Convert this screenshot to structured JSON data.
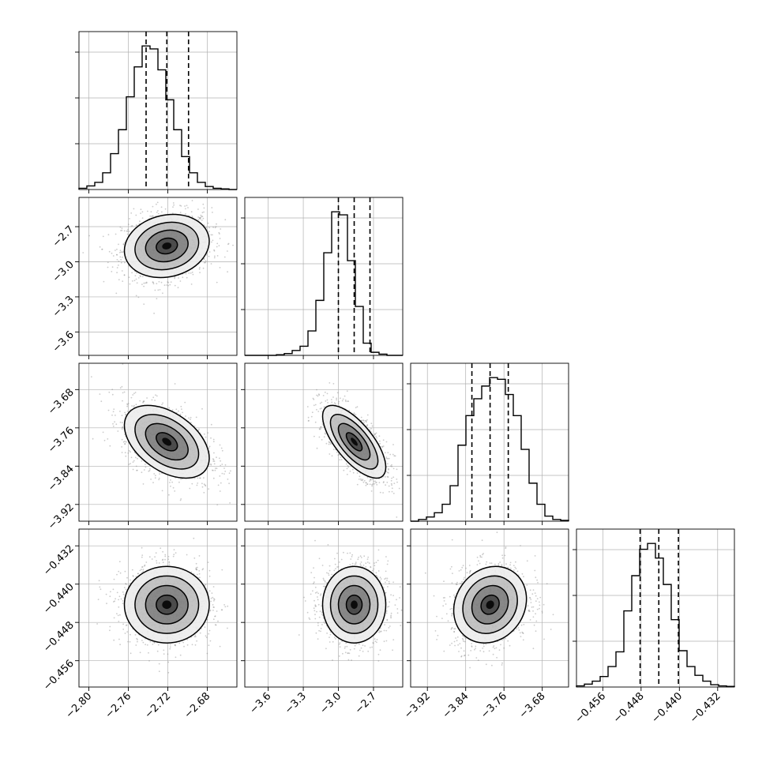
{
  "chart_data": {
    "type": "corner",
    "title": "",
    "parameters": [
      {
        "label": "",
        "range": [
          -2.81,
          -2.65
        ],
        "quantiles": [
          -2.742,
          -2.721,
          -2.699
        ],
        "ticks": [
          "-2.80",
          "-2.76",
          "-2.72",
          "-2.68"
        ],
        "tick_values": [
          -2.8,
          -2.76,
          -2.72,
          -2.68
        ]
      },
      {
        "label": "",
        "range": [
          -3.8,
          -2.45
        ],
        "quantiles": [
          -3.0,
          -2.865,
          -2.73
        ],
        "ticks": [
          "-3.6",
          "-3.3",
          "-3.0",
          "-2.7"
        ],
        "tick_values": [
          -3.6,
          -3.3,
          -3.0,
          -2.7
        ]
      },
      {
        "label": "",
        "range": [
          -3.955,
          -3.625
        ],
        "quantiles": [
          -3.827,
          -3.789,
          -3.751
        ],
        "ticks": [
          "-3.92",
          "-3.84",
          "-3.76",
          "-3.68"
        ],
        "tick_values": [
          -3.92,
          -3.84,
          -3.76,
          -3.68
        ]
      },
      {
        "label": "",
        "range": [
          -0.4615,
          -0.4285
        ],
        "quantiles": [
          -0.4482,
          -0.4443,
          -0.4402
        ],
        "ticks": [
          "-0.456",
          "-0.448",
          "-0.440",
          "-0.432"
        ],
        "tick_values": [
          -0.456,
          -0.448,
          -0.44,
          -0.432
        ]
      }
    ],
    "histograms": [
      {
        "bins": 20,
        "counts": [
          2,
          6,
          12,
          28,
          60,
          100,
          155,
          205,
          240,
          235,
          200,
          150,
          100,
          55,
          28,
          12,
          5,
          2,
          1,
          0
        ]
      },
      {
        "bins": 20,
        "counts": [
          0,
          0,
          0,
          0,
          1,
          3,
          8,
          15,
          40,
          90,
          168,
          235,
          230,
          155,
          80,
          20,
          5,
          2,
          0,
          0
        ]
      },
      {
        "bins": 20,
        "counts": [
          0,
          2,
          5,
          10,
          20,
          42,
          90,
          125,
          145,
          160,
          170,
          168,
          150,
          125,
          85,
          45,
          20,
          6,
          2,
          1
        ]
      },
      {
        "bins": 20,
        "counts": [
          2,
          5,
          10,
          18,
          35,
          60,
          130,
          190,
          235,
          245,
          220,
          175,
          115,
          62,
          35,
          20,
          10,
          4,
          2,
          1
        ]
      }
    ],
    "correlations": [
      {
        "x": 0,
        "y": 1,
        "r": 0.15
      },
      {
        "x": 0,
        "y": 2,
        "r": -0.45
      },
      {
        "x": 1,
        "y": 2,
        "r": -0.7
      },
      {
        "x": 0,
        "y": 3,
        "r": 0.0
      },
      {
        "x": 1,
        "y": 3,
        "r": 0.0
      },
      {
        "x": 2,
        "y": 3,
        "r": 0.15
      }
    ],
    "contour_levels_sigma": [
      0.5,
      1.0,
      1.5,
      2.0
    ],
    "grid": true,
    "legend": "none"
  },
  "colors": {
    "line": "#000000",
    "grid": "#b0b0b0",
    "scatter": "#8c8c8c",
    "density": "#000000",
    "background": "#ffffff"
  }
}
